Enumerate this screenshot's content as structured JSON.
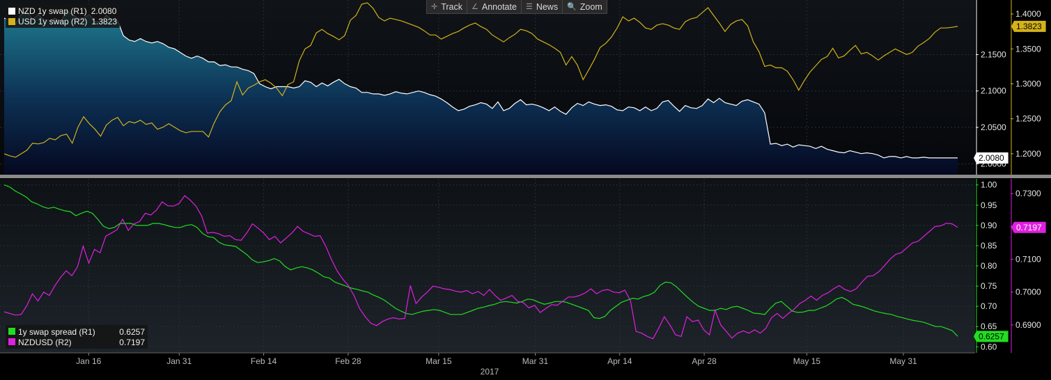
{
  "toolbar": {
    "items": [
      {
        "label": "Track",
        "icon": "crosshair-icon",
        "glyph": "✛"
      },
      {
        "label": "Annotate",
        "icon": "pencil-icon",
        "glyph": "∠"
      },
      {
        "label": "News",
        "icon": "news-icon",
        "glyph": "☰"
      },
      {
        "label": "Zoom",
        "icon": "magnifier-icon",
        "glyph": "🔍"
      }
    ]
  },
  "legend_top": [
    {
      "label": "NZD 1y swap (R1)",
      "value": "2.0080",
      "color": "#ffffff"
    },
    {
      "label": "USD 1y swap (R2)",
      "value": "1.3823",
      "color": "#d4b21a"
    }
  ],
  "legend_bottom": [
    {
      "label": "1y swap spread (R1)",
      "value": "0.6257",
      "color": "#22dd22"
    },
    {
      "label": "NZDUSD (R2)",
      "value": "0.7197",
      "color": "#e020e0"
    }
  ],
  "colors": {
    "nzd": "#ffffff",
    "usd": "#d4b21a",
    "spread": "#22dd22",
    "nzdusd": "#e020e0",
    "area_top": "#1f7a8f",
    "area_bottom": "#050820"
  },
  "chart_data": [
    {
      "type": "area",
      "panel": "top",
      "x_date_range": [
        "2017-01-02",
        "2017-06-09"
      ],
      "x_tick_labels": [
        "Jan 16",
        "Jan 31",
        "Feb 14",
        "Feb 28",
        "Mar 15",
        "Mar 31",
        "Apr 14",
        "Apr 28",
        "May 15",
        "May 31"
      ],
      "x_year_label": "2017",
      "left_axis": {
        "ticks": [
          "2.0000",
          "2.0500",
          "2.1000",
          "2.1500"
        ],
        "ylim": [
          1.985,
          2.225
        ]
      },
      "right_axis": {
        "ticks": [
          "1.2000",
          "1.2500",
          "1.3000",
          "1.3500",
          "1.4000"
        ],
        "ylim": [
          1.17,
          1.42
        ]
      },
      "series": [
        {
          "name": "NZD 1y swap (R1)",
          "axis": "left",
          "last": "2.0080",
          "values": [
            2.2,
            2.197,
            2.192,
            2.205,
            2.21,
            2.198,
            2.205,
            2.198,
            2.197,
            2.2,
            2.195,
            2.21,
            2.205,
            2.2,
            2.2,
            2.205,
            2.195,
            2.195,
            2.204,
            2.198,
            2.196,
            2.176,
            2.17,
            2.168,
            2.172,
            2.168,
            2.166,
            2.168,
            2.165,
            2.16,
            2.158,
            2.153,
            2.148,
            2.145,
            2.148,
            2.145,
            2.14,
            2.14,
            2.135,
            2.136,
            2.133,
            2.133,
            2.13,
            2.128,
            2.124,
            2.11,
            2.106,
            2.103,
            2.106,
            2.106,
            2.106,
            2.104,
            2.106,
            2.114,
            2.112,
            2.106,
            2.111,
            2.107,
            2.112,
            2.116,
            2.11,
            2.106,
            2.104,
            2.098,
            2.098,
            2.096,
            2.096,
            2.094,
            2.096,
            2.099,
            2.097,
            2.096,
            2.098,
            2.1,
            2.098,
            2.095,
            2.093,
            2.089,
            2.084,
            2.078,
            2.073,
            2.075,
            2.079,
            2.081,
            2.084,
            2.082,
            2.076,
            2.085,
            2.073,
            2.076,
            2.083,
            2.088,
            2.081,
            2.082,
            2.08,
            2.077,
            2.073,
            2.078,
            2.072,
            2.068,
            2.077,
            2.083,
            2.08,
            2.085,
            2.082,
            2.08,
            2.081,
            2.079,
            2.074,
            2.073,
            2.078,
            2.077,
            2.073,
            2.078,
            2.073,
            2.076,
            2.085,
            2.087,
            2.079,
            2.072,
            2.08,
            2.077,
            2.076,
            2.08,
            2.089,
            2.084,
            2.09,
            2.084,
            2.082,
            2.08,
            2.086,
            2.088,
            2.085,
            2.082,
            2.07,
            2.027,
            2.028,
            2.025,
            2.027,
            2.023,
            2.026,
            2.025,
            2.024,
            2.021,
            2.024,
            2.02,
            2.018,
            2.016,
            2.015,
            2.018,
            2.016,
            2.014,
            2.015,
            2.014,
            2.012,
            2.008,
            2.01,
            2.01,
            2.008,
            2.01,
            2.008,
            2.008,
            2.009,
            2.008,
            2.008,
            2.008,
            2.008,
            2.008,
            2.008
          ]
        },
        {
          "name": "USD 1y swap (R2)",
          "axis": "right",
          "last": "1.3823",
          "values": [
            1.2,
            1.197,
            1.195,
            1.2,
            1.205,
            1.215,
            1.214,
            1.216,
            1.222,
            1.22,
            1.226,
            1.228,
            1.215,
            1.238,
            1.253,
            1.243,
            1.235,
            1.225,
            1.241,
            1.248,
            1.252,
            1.24,
            1.246,
            1.244,
            1.248,
            1.242,
            1.244,
            1.235,
            1.238,
            1.243,
            1.238,
            1.233,
            1.23,
            1.232,
            1.232,
            1.232,
            1.224,
            1.244,
            1.26,
            1.27,
            1.276,
            1.303,
            1.284,
            1.294,
            1.298,
            1.303,
            1.306,
            1.301,
            1.294,
            1.283,
            1.299,
            1.303,
            1.333,
            1.35,
            1.355,
            1.373,
            1.378,
            1.372,
            1.368,
            1.363,
            1.369,
            1.391,
            1.398,
            1.414,
            1.416,
            1.408,
            1.395,
            1.39,
            1.394,
            1.392,
            1.39,
            1.387,
            1.384,
            1.381,
            1.376,
            1.37,
            1.37,
            1.364,
            1.368,
            1.372,
            1.375,
            1.38,
            1.384,
            1.387,
            1.382,
            1.378,
            1.37,
            1.365,
            1.36,
            1.366,
            1.371,
            1.378,
            1.376,
            1.372,
            1.364,
            1.36,
            1.356,
            1.351,
            1.345,
            1.327,
            1.339,
            1.327,
            1.306,
            1.32,
            1.335,
            1.352,
            1.358,
            1.367,
            1.38,
            1.396,
            1.39,
            1.394,
            1.388,
            1.38,
            1.378,
            1.384,
            1.386,
            1.384,
            1.38,
            1.378,
            1.389,
            1.393,
            1.395,
            1.402,
            1.409,
            1.398,
            1.387,
            1.375,
            1.385,
            1.39,
            1.392,
            1.383,
            1.36,
            1.346,
            1.325,
            1.327,
            1.323,
            1.323,
            1.318,
            1.306,
            1.291,
            1.305,
            1.317,
            1.326,
            1.335,
            1.339,
            1.351,
            1.337,
            1.34,
            1.348,
            1.355,
            1.343,
            1.345,
            1.34,
            1.334,
            1.34,
            1.345,
            1.35,
            1.346,
            1.342,
            1.345,
            1.354,
            1.359,
            1.365,
            1.374,
            1.38,
            1.38,
            1.381,
            1.3823
          ]
        }
      ]
    },
    {
      "type": "line",
      "panel": "bottom",
      "x_date_range": [
        "2017-01-02",
        "2017-06-09"
      ],
      "left_axis": {
        "ticks": [
          "0.60",
          "0.65",
          "0.70",
          "0.75",
          "0.80",
          "0.85",
          "0.90",
          "0.95",
          "1.00"
        ],
        "ylim": [
          0.585,
          1.015
        ]
      },
      "right_axis": {
        "ticks": [
          "0.6900",
          "0.7000",
          "0.7100",
          "0.7200",
          "0.7300"
        ],
        "ylim": [
          0.6815,
          0.7345
        ]
      },
      "series": [
        {
          "name": "1y swap spread (R1)",
          "axis": "left",
          "last": "0.6257",
          "values": [
            1.0,
            0.995,
            0.985,
            0.978,
            0.97,
            0.958,
            0.953,
            0.946,
            0.942,
            0.945,
            0.94,
            0.936,
            0.934,
            0.924,
            0.93,
            0.935,
            0.93,
            0.915,
            0.898,
            0.892,
            0.895,
            0.905,
            0.905,
            0.905,
            0.9,
            0.9,
            0.9,
            0.905,
            0.905,
            0.902,
            0.898,
            0.895,
            0.895,
            0.9,
            0.902,
            0.895,
            0.88,
            0.872,
            0.87,
            0.858,
            0.852,
            0.85,
            0.848,
            0.838,
            0.828,
            0.815,
            0.808,
            0.81,
            0.813,
            0.818,
            0.812,
            0.798,
            0.79,
            0.795,
            0.798,
            0.795,
            0.79,
            0.782,
            0.773,
            0.77,
            0.76,
            0.755,
            0.75,
            0.745,
            0.742,
            0.738,
            0.735,
            0.728,
            0.722,
            0.715,
            0.705,
            0.695,
            0.688,
            0.682,
            0.68,
            0.684,
            0.688,
            0.69,
            0.692,
            0.69,
            0.685,
            0.68,
            0.68,
            0.68,
            0.685,
            0.69,
            0.695,
            0.698,
            0.702,
            0.705,
            0.71,
            0.712,
            0.71,
            0.708,
            0.712,
            0.718,
            0.716,
            0.71,
            0.705,
            0.708,
            0.712,
            0.712,
            0.71,
            0.705,
            0.7,
            0.695,
            0.69,
            0.672,
            0.67,
            0.675,
            0.69,
            0.7,
            0.71,
            0.715,
            0.72,
            0.718,
            0.724,
            0.728,
            0.735,
            0.752,
            0.76,
            0.758,
            0.748,
            0.735,
            0.722,
            0.71,
            0.7,
            0.695,
            0.69,
            0.69,
            0.695,
            0.692,
            0.698,
            0.7,
            0.695,
            0.69,
            0.683,
            0.682,
            0.68,
            0.695,
            0.708,
            0.712,
            0.7,
            0.688,
            0.685,
            0.686,
            0.69,
            0.69,
            0.695,
            0.7,
            0.708,
            0.718,
            0.722,
            0.715,
            0.705,
            0.702,
            0.698,
            0.693,
            0.688,
            0.685,
            0.682,
            0.68,
            0.675,
            0.672,
            0.668,
            0.665,
            0.663,
            0.66,
            0.655,
            0.65,
            0.65,
            0.645,
            0.64,
            0.6257
          ]
        },
        {
          "name": "NZDUSD (R2)",
          "axis": "right",
          "last": "0.7197",
          "values": [
            0.694,
            0.6935,
            0.693,
            0.6932,
            0.6958,
            0.6995,
            0.6973,
            0.7,
            0.699,
            0.702,
            0.7045,
            0.7065,
            0.705,
            0.7077,
            0.714,
            0.7088,
            0.713,
            0.712,
            0.717,
            0.718,
            0.719,
            0.7222,
            0.7188,
            0.7208,
            0.7215,
            0.724,
            0.7235,
            0.725,
            0.7275,
            0.7263,
            0.7262,
            0.727,
            0.7294,
            0.728,
            0.7262,
            0.7232,
            0.718,
            0.7182,
            0.7178,
            0.717,
            0.7172,
            0.716,
            0.7158,
            0.718,
            0.7208,
            0.7195,
            0.718,
            0.716,
            0.717,
            0.715,
            0.7165,
            0.718,
            0.72,
            0.7185,
            0.7178,
            0.717,
            0.7172,
            0.714,
            0.71,
            0.7065,
            0.704,
            0.702,
            0.699,
            0.695,
            0.6925,
            0.6905,
            0.6898,
            0.691,
            0.6918,
            0.6922,
            0.6918,
            0.692,
            0.702,
            0.6965,
            0.6985,
            0.7,
            0.7018,
            0.7015,
            0.701,
            0.7008,
            0.7003,
            0.7,
            0.7005,
            0.6995,
            0.7002,
            0.699,
            0.7008,
            0.699,
            0.6975,
            0.6982,
            0.699,
            0.6972,
            0.6968,
            0.6952,
            0.696,
            0.6938,
            0.695,
            0.6962,
            0.696,
            0.6972,
            0.6985,
            0.6985,
            0.699,
            0.6998,
            0.701,
            0.6995,
            0.7005,
            0.7008,
            0.7,
            0.6998,
            0.7006,
            0.6974,
            0.688,
            0.6875,
            0.6865,
            0.6858,
            0.689,
            0.6925,
            0.69,
            0.687,
            0.6865,
            0.6925,
            0.691,
            0.6915,
            0.6885,
            0.687,
            0.6945,
            0.69,
            0.688,
            0.686,
            0.6875,
            0.6882,
            0.6875,
            0.6885,
            0.6875,
            0.689,
            0.6922,
            0.6935,
            0.692,
            0.6935,
            0.6948,
            0.6965,
            0.6975,
            0.6988,
            0.6975,
            0.699,
            0.6998,
            0.701,
            0.702,
            0.7008,
            0.7002,
            0.701,
            0.703,
            0.7048,
            0.705,
            0.7062,
            0.708,
            0.71,
            0.7115,
            0.712,
            0.7135,
            0.715,
            0.7155,
            0.717,
            0.7185,
            0.72,
            0.7202,
            0.721,
            0.7208,
            0.7197
          ]
        }
      ]
    }
  ]
}
